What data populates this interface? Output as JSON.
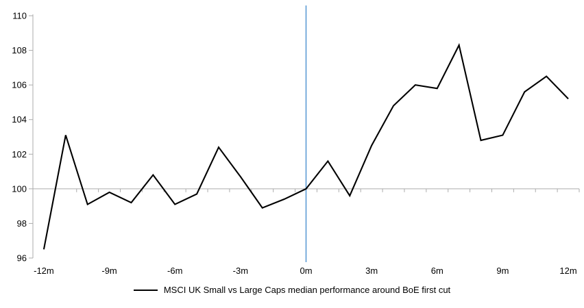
{
  "chart_data": {
    "type": "line",
    "title": "",
    "xlabel": "",
    "ylabel": "",
    "x": [
      -12,
      -11,
      -10,
      -9,
      -8,
      -7,
      -6,
      -5,
      -4,
      -3,
      -2,
      -1,
      0,
      1,
      2,
      3,
      4,
      5,
      6,
      7,
      8,
      9,
      10,
      11,
      12
    ],
    "series": [
      {
        "name": "MSCI UK Small vs Large Caps median performance around BoE first cut",
        "color": "#000000",
        "values": [
          96.5,
          103.1,
          99.1,
          99.8,
          99.2,
          100.8,
          99.1,
          99.7,
          102.4,
          100.7,
          98.9,
          99.4,
          100.0,
          101.6,
          99.6,
          102.5,
          104.8,
          106.0,
          105.8,
          108.3,
          102.8,
          103.1,
          105.6,
          106.5,
          105.2
        ]
      }
    ],
    "xlim": [
      -12.5,
      12.5
    ],
    "ylim": [
      96,
      110
    ],
    "yticks": [
      96,
      98,
      100,
      102,
      104,
      106,
      108,
      110
    ],
    "ytick_labels": [
      "96",
      "98",
      "100",
      "102",
      "104",
      "106",
      "108",
      "110"
    ],
    "xtick_months": [
      -12,
      -9,
      -6,
      -3,
      0,
      3,
      6,
      9,
      12
    ],
    "xtick_labels": [
      "-12m",
      "-9m",
      "-6m",
      "-3m",
      "0m",
      "3m",
      "6m",
      "9m",
      "12m"
    ],
    "minor_tick_step_months": 1,
    "grid": false,
    "baseline": {
      "y": 100,
      "color": "#ABABAB"
    },
    "event_line": {
      "x": 0,
      "color": "#5B9BD5"
    },
    "axis_color": "#ABABAB",
    "legend": {
      "position": "bottom",
      "label": "MSCI UK Small vs Large Caps median performance around BoE first cut"
    }
  }
}
